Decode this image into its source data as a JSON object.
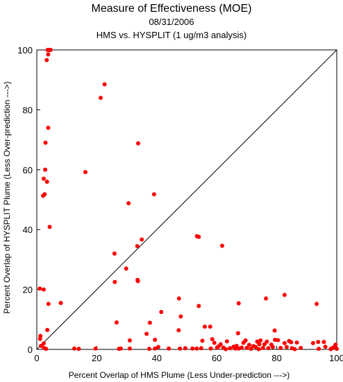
{
  "chart_data": {
    "type": "scatter",
    "title": "Measure of Effectiveness (MOE)",
    "subtitle": "08/31/2006",
    "subtitle2": "HMS vs. HYSPLIT  (1 ug/m3 analysis)",
    "xlabel": "Percent Overlap of HMS Plume (Less Under-prediction --->)",
    "ylabel": "Percent Overlap of HYSPLIT Plume (Less Over-prediction --->)",
    "xlim": [
      0,
      100
    ],
    "ylim": [
      0,
      100
    ],
    "x_ticks": [
      0,
      20,
      40,
      60,
      80,
      100
    ],
    "y_ticks": [
      0,
      20,
      40,
      60,
      80,
      100
    ],
    "grid": false,
    "diagonal_reference_line": true,
    "point_color": "#ff0000",
    "series": [
      {
        "points": [
          [
            3.6,
            100
          ],
          [
            4.1,
            100
          ],
          [
            4.6,
            100
          ],
          [
            3.8,
            98.5
          ],
          [
            3.3,
            96.6
          ],
          [
            22.6,
            88.5
          ],
          [
            21.3,
            84.0
          ],
          [
            3.8,
            74.0
          ],
          [
            2.9,
            69.0
          ],
          [
            33.8,
            68.8
          ],
          [
            2.8,
            60.0
          ],
          [
            16.2,
            59.2
          ],
          [
            2.3,
            57.0
          ],
          [
            3.4,
            56.0
          ],
          [
            2.6,
            51.8
          ],
          [
            2.1,
            51.3
          ],
          [
            39.1,
            51.8
          ],
          [
            30.6,
            48.8
          ],
          [
            4.3,
            40.9
          ],
          [
            35.0,
            36.7
          ],
          [
            53.4,
            37.8
          ],
          [
            54.0,
            37.6
          ],
          [
            33.5,
            34.5
          ],
          [
            61.8,
            34.6
          ],
          [
            25.9,
            32.0
          ],
          [
            29.8,
            27.0
          ],
          [
            1.0,
            20.3
          ],
          [
            2.3,
            20.0
          ],
          [
            26.0,
            22.5
          ],
          [
            33.6,
            23.2
          ],
          [
            33.7,
            22.8
          ],
          [
            3.9,
            15.2
          ],
          [
            8.0,
            15.5
          ],
          [
            47.4,
            17.0
          ],
          [
            67.3,
            15.4
          ],
          [
            76.4,
            17.0
          ],
          [
            82.6,
            18.2
          ],
          [
            93.3,
            15.2
          ],
          [
            54.0,
            14.5
          ],
          [
            48.0,
            11.0
          ],
          [
            41.5,
            12.5
          ],
          [
            37.7,
            8.9
          ],
          [
            26.6,
            9.0
          ],
          [
            47.3,
            6.4
          ],
          [
            56.0,
            7.6
          ],
          [
            57.8,
            7.6
          ],
          [
            67.1,
            5.4
          ],
          [
            79.3,
            6.3
          ],
          [
            3.5,
            6.5
          ],
          [
            1.2,
            4.5
          ],
          [
            1.1,
            3.5
          ],
          [
            2.3,
            2.0
          ],
          [
            1.4,
            1.2
          ],
          [
            2.4,
            0.5
          ],
          [
            3.1,
            0.2
          ],
          [
            12.5,
            0.3
          ],
          [
            14.0,
            0.2
          ],
          [
            19.6,
            0.3
          ],
          [
            27.4,
            0.2
          ],
          [
            28.0,
            0.3
          ],
          [
            31.0,
            0.3
          ],
          [
            31.0,
            3.0
          ],
          [
            36.6,
            5.2
          ],
          [
            37.5,
            0.2
          ],
          [
            39.4,
            3.2
          ],
          [
            39.4,
            0.3
          ],
          [
            44.0,
            0.3
          ],
          [
            47.7,
            0.3
          ],
          [
            49.5,
            0.4
          ],
          [
            51.9,
            0.3
          ],
          [
            53.3,
            0.3
          ],
          [
            54.8,
            0.4
          ],
          [
            55.2,
            2.9
          ],
          [
            58.0,
            0.3
          ],
          [
            58.5,
            3.4
          ],
          [
            59.2,
            2.2
          ],
          [
            60.1,
            0.6
          ],
          [
            60.6,
            1.0
          ],
          [
            61.3,
            1.7
          ],
          [
            62.2,
            0.6
          ],
          [
            63.4,
            2.7
          ],
          [
            64.4,
            0.4
          ],
          [
            65.6,
            0.9
          ],
          [
            66.2,
            0.3
          ],
          [
            66.6,
            1.2
          ],
          [
            67.3,
            0.3
          ],
          [
            68.3,
            0.6
          ],
          [
            68.9,
            2.2
          ],
          [
            69.6,
            3.0
          ],
          [
            70.0,
            0.5
          ],
          [
            70.8,
            1.5
          ],
          [
            71.4,
            0.2
          ],
          [
            72.2,
            1.1
          ],
          [
            73.0,
            0.8
          ],
          [
            73.5,
            2.6
          ],
          [
            74.2,
            1.7
          ],
          [
            74.6,
            3.0
          ],
          [
            75.4,
            0.5
          ],
          [
            75.9,
            1.7
          ],
          [
            76.7,
            2.6
          ],
          [
            77.2,
            0.4
          ],
          [
            78.2,
            1.6
          ],
          [
            78.7,
            0.8
          ],
          [
            79.4,
            3.2
          ],
          [
            80.4,
            3.1
          ],
          [
            81.3,
            0.5
          ],
          [
            82.6,
            2.1
          ],
          [
            83.3,
            0.8
          ],
          [
            84.1,
            2.8
          ],
          [
            84.8,
            2.4
          ],
          [
            85.1,
            0.4
          ],
          [
            86.7,
            2.3
          ],
          [
            88.0,
            0.5
          ],
          [
            92.1,
            2.1
          ],
          [
            93.8,
            2.5
          ],
          [
            94.0,
            0.2
          ],
          [
            95.7,
            2.5
          ],
          [
            96.2,
            0.9
          ],
          [
            98.4,
            0.4
          ],
          [
            99.2,
            0.9
          ],
          [
            99.6,
            1.6
          ],
          [
            100,
            0.2
          ],
          [
            40.5,
            0.8
          ],
          [
            63.0,
            0.1
          ],
          [
            74.0,
            0.1
          ],
          [
            86.0,
            0.1
          ],
          [
            98.0,
            0.1
          ]
        ]
      }
    ]
  }
}
